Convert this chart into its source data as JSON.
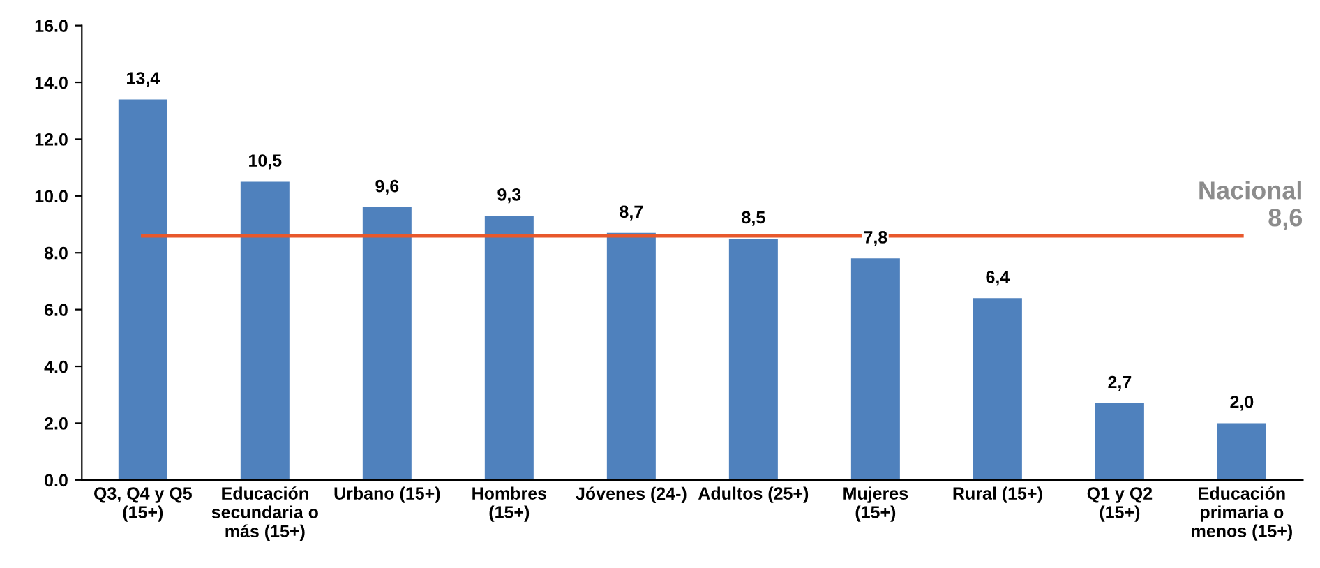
{
  "chart_data": {
    "type": "bar",
    "categories": [
      "Q3, Q4 y Q5\n(15+)",
      "Educación\nsecundaria o\nmás (15+)",
      "Urbano (15+)",
      "Hombres\n(15+)",
      "Jóvenes (24-)",
      "Adultos (25+)",
      "Mujeres\n(15+)",
      "Rural (15+)",
      "Q1 y Q2\n(15+)",
      "Educación\nprimaria o\nmenos (15+)"
    ],
    "values": [
      13.4,
      10.5,
      9.6,
      9.3,
      8.7,
      8.5,
      7.8,
      6.4,
      2.7,
      2.0
    ],
    "value_labels": [
      "13,4",
      "10,5",
      "9,6",
      "9,3",
      "8,7",
      "8,5",
      "7,8",
      "6,4",
      "2,7",
      "2,0"
    ],
    "color": "#4f81bd",
    "ylim": [
      0,
      16
    ],
    "yticks": [
      {
        "value": 0,
        "label": "0.0"
      },
      {
        "value": 2,
        "label": "2.0"
      },
      {
        "value": 4,
        "label": "4.0"
      },
      {
        "value": 6,
        "label": "6.0"
      },
      {
        "value": 8,
        "label": "8.0"
      },
      {
        "value": 10,
        "label": "10.0"
      },
      {
        "value": 12,
        "label": "12.0"
      },
      {
        "value": 14,
        "label": "14.0"
      },
      {
        "value": 16,
        "label": "16.0"
      }
    ],
    "ref_lines": [
      {
        "axis": "y",
        "value": 8.6,
        "label": "Nacional\n8,6",
        "color": "#e8582c"
      }
    ],
    "grid": false
  }
}
